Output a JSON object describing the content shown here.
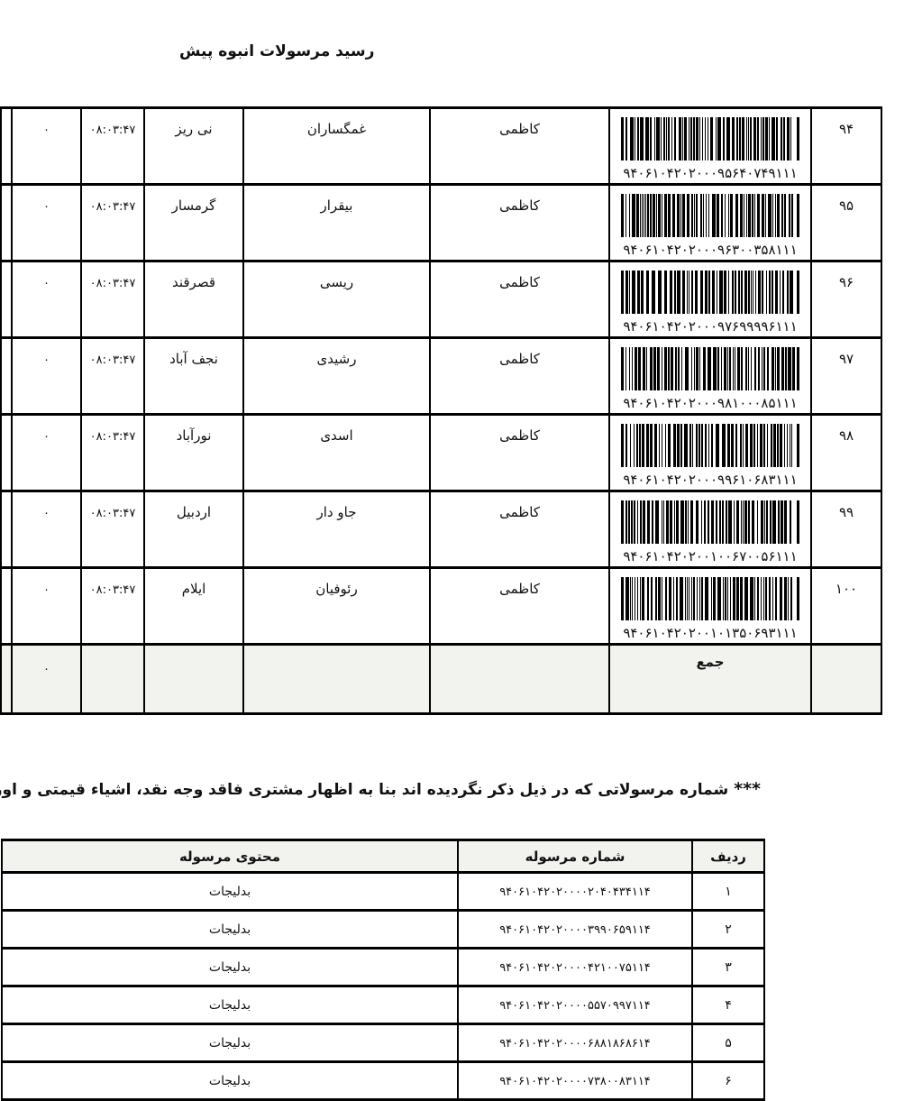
{
  "page": {
    "title": "رسید مرسولات انبوه    پیش"
  },
  "colors": {
    "border": "#000000",
    "shaded_row_bg": "#f2f2ef",
    "text": "#111111"
  },
  "table1": {
    "rows": [
      {
        "num": "۹۴",
        "code": "۹۴۰۶۱۰۴۲۰۲۰۰۰۹۵۶۴۰۷۴۹۱۱۱",
        "sender": "کاظمی",
        "recipient": "غمگساران",
        "city": "نی ریز",
        "time": "۰۸:۰۳:۴۷",
        "amount": "۰"
      },
      {
        "num": "۹۵",
        "code": "۹۴۰۶۱۰۴۲۰۲۰۰۰۹۶۳۰۰۳۵۸۱۱۱",
        "sender": "کاظمی",
        "recipient": "بیقرار",
        "city": "گرمسار",
        "time": "۰۸:۰۳:۴۷",
        "amount": "۰"
      },
      {
        "num": "۹۶",
        "code": "۹۴۰۶۱۰۴۲۰۲۰۰۰۹۷۶۹۹۹۹۶۱۱۱",
        "sender": "کاظمی",
        "recipient": "ریسی",
        "city": "قصرقند",
        "time": "۰۸:۰۳:۴۷",
        "amount": "۰"
      },
      {
        "num": "۹۷",
        "code": "۹۴۰۶۱۰۴۲۰۲۰۰۰۹۸۱۰۰۰۸۵۱۱۱",
        "sender": "کاظمی",
        "recipient": "رشیدی",
        "city": "نجف آباد",
        "time": "۰۸:۰۳:۴۷",
        "amount": "۰"
      },
      {
        "num": "۹۸",
        "code": "۹۴۰۶۱۰۴۲۰۲۰۰۰۹۹۶۱۰۶۸۳۱۱۱",
        "sender": "کاظمی",
        "recipient": "اسدی",
        "city": "نورآباد",
        "time": "۰۸:۰۳:۴۷",
        "amount": "۰"
      },
      {
        "num": "۹۹",
        "code": "۹۴۰۶۱۰۴۲۰۲۰۰۱۰۰۶۷۰۰۵۶۱۱۱",
        "sender": "کاظمی",
        "recipient": "جاو دار",
        "city": "اردبیل",
        "time": "۰۸:۰۳:۴۷",
        "amount": "۰"
      },
      {
        "num": "۱۰۰",
        "code": "۹۴۰۶۱۰۴۲۰۲۰۰۱۰۱۳۵۰۶۹۳۱۱۱",
        "sender": "کاظمی",
        "recipient": "رئوفیان",
        "city": "ایلام",
        "time": "۰۸:۰۳:۴۷",
        "amount": "۰"
      }
    ],
    "total_row": {
      "label": "جمع",
      "amount": "۰"
    }
  },
  "note": {
    "marker": "***",
    "text": " شماره مرسولاتی که در ذیل ذکر نگردیده اند بنا به اظهار مشتری فاقد وجه نقد، اشیاء قیمتی و اوراق بهادار می با"
  },
  "table2": {
    "headers": {
      "row": "ردیف",
      "number": "شماره مرسوله",
      "content": "محتوی مرسوله"
    },
    "rows": [
      {
        "num": "۱",
        "code": "۹۴۰۶۱۰۴۲۰۲۰۰۰۰۲۰۴۰۴۳۴۱۱۴",
        "content": "بدلیجات"
      },
      {
        "num": "۲",
        "code": "۹۴۰۶۱۰۴۲۰۲۰۰۰۰۳۹۹۰۶۵۹۱۱۴",
        "content": "بدلیجات"
      },
      {
        "num": "۳",
        "code": "۹۴۰۶۱۰۴۲۰۲۰۰۰۰۴۲۱۰۰۷۵۱۱۴",
        "content": "بدلیجات"
      },
      {
        "num": "۴",
        "code": "۹۴۰۶۱۰۴۲۰۲۰۰۰۰۵۵۷۰۹۹۷۱۱۴",
        "content": "بدلیجات"
      },
      {
        "num": "۵",
        "code": "۹۴۰۶۱۰۴۲۰۲۰۰۰۰۶۸۸۱۸۶۸۶۱۴",
        "content": "بدلیجات"
      },
      {
        "num": "۶",
        "code": "۹۴۰۶۱۰۴۲۰۲۰۰۰۰۷۳۸۰۰۸۳۱۱۴",
        "content": "بدلیجات"
      }
    ]
  }
}
